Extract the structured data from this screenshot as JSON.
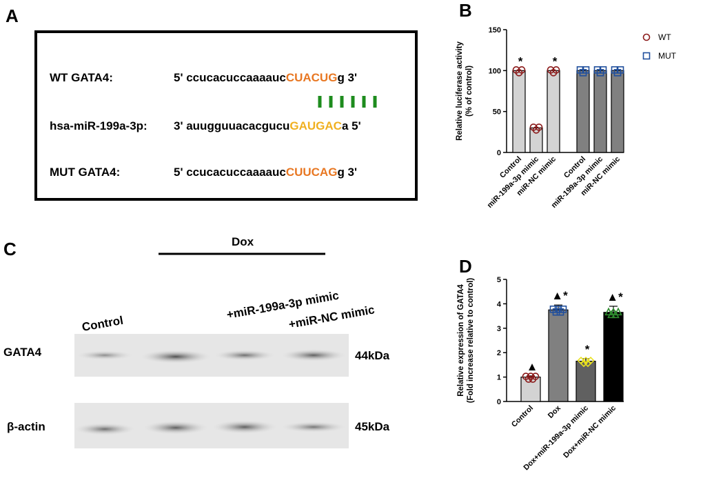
{
  "panel_labels": [
    "A",
    "B",
    "C",
    "D"
  ],
  "sequence": {
    "rows": [
      {
        "name": "WT GATA4:",
        "prefix": "5' ccucacuccaaaauc",
        "site": "CUACUG",
        "suffix": "g 3'"
      },
      {
        "name": "hsa-miR-199a-3p:",
        "prefix": "3' auugguuacacgucu",
        "site": "GAUGAC",
        "suffix": "a 5'"
      },
      {
        "name": "MUT GATA4:",
        "prefix": "5' ccucacuccaaaauc",
        "site": "CUUCAG",
        "suffix": "g 3'"
      }
    ]
  },
  "blot": {
    "treatment": "Dox",
    "lanes": [
      "Control",
      "+miR-199a-3p mimic",
      "+miR-NC mimic"
    ],
    "rows": [
      {
        "name": "GATA4",
        "size": "44kDa"
      },
      {
        "name": "β-actin",
        "size": "45kDa"
      }
    ]
  },
  "chart_data": [
    {
      "type": "bar",
      "ylabel": [
        "Relative luciferase activity",
        "(% of control)"
      ],
      "categories": [
        "Control",
        "miR-199a-3p mimic",
        "miR-NC mimic",
        "Control",
        "miR-199a-3p mimic",
        "miR-NC mimic"
      ],
      "series": [
        {
          "name": "WT",
          "color": "#8b1a1a",
          "bar_color": "#d3d3d3",
          "values": [
            100,
            30,
            100,
            null,
            null,
            null
          ]
        },
        {
          "name": "MUT",
          "color": "#1f4e9c",
          "bar_color": "#808080",
          "values": [
            null,
            null,
            null,
            100,
            100,
            100
          ]
        }
      ],
      "annotations": [
        "*",
        null,
        "*",
        null,
        null,
        null
      ],
      "ylim": [
        0,
        150
      ],
      "yticks": [
        0,
        50,
        100,
        150
      ],
      "legend": "right"
    },
    {
      "type": "bar",
      "ylabel": [
        "Relative expression of GATA4",
        "(Fold increase relative to control)"
      ],
      "categories": [
        "Control",
        "Dox",
        "Dox+miR-199a-3p mimic",
        "Dox+miR-NC mimic"
      ],
      "values": [
        1.0,
        3.75,
        1.65,
        3.65
      ],
      "errors": [
        0.05,
        0.2,
        0.1,
        0.25
      ],
      "colors": [
        "#d3d3d3",
        "#808080",
        "#606060",
        "#000000"
      ],
      "point_colors": [
        "#8b1a1a",
        "#1f4e9c",
        "#e8e020",
        "#2e8b2e"
      ],
      "annotations": [
        "▲",
        "▲*",
        "*",
        "▲*"
      ],
      "ylim": [
        0,
        5
      ],
      "yticks": [
        0,
        1,
        2,
        3,
        4,
        5
      ]
    }
  ]
}
